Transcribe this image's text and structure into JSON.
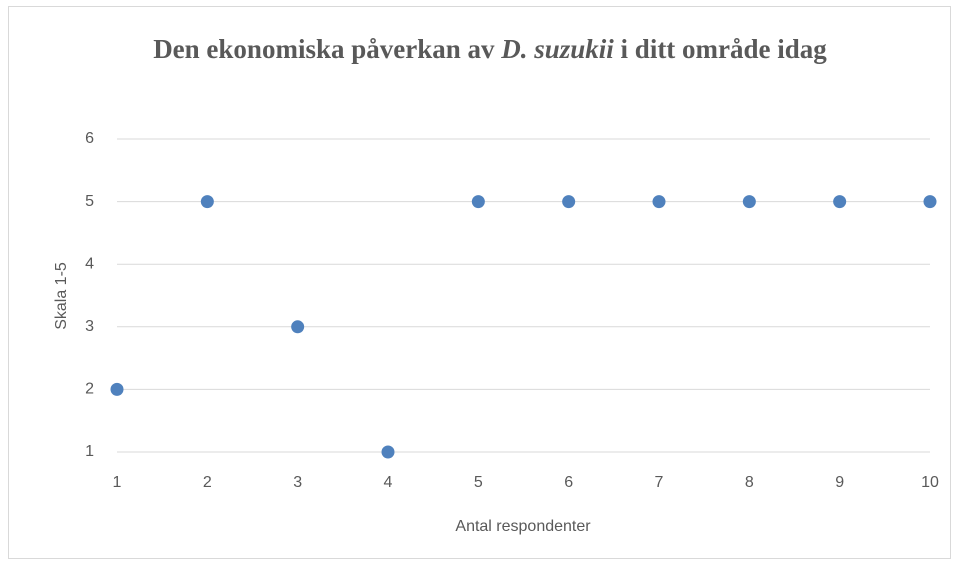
{
  "chart_data": {
    "type": "scatter",
    "title": [
      {
        "text": "Den ekonomiska påverkan av"
      },
      {
        "text": "D. suzukii",
        "italic": true
      },
      {
        "text": "i ditt område idag"
      }
    ],
    "x_label": "Antal respondenter",
    "y_label": "Skala 1-5",
    "x": [
      1,
      2,
      3,
      4,
      5,
      6,
      7,
      8,
      9,
      10
    ],
    "values": [
      2,
      5,
      3,
      1,
      5,
      5,
      5,
      5,
      5,
      5
    ],
    "color": "#4f81bd",
    "xlim": [
      1,
      10
    ],
    "xticks": [
      1,
      2,
      3,
      4,
      5,
      6,
      7,
      8,
      9,
      10
    ],
    "ylim": [
      1,
      6
    ],
    "yticks": [
      1,
      2,
      3,
      4,
      5,
      6
    ],
    "grid": true
  }
}
